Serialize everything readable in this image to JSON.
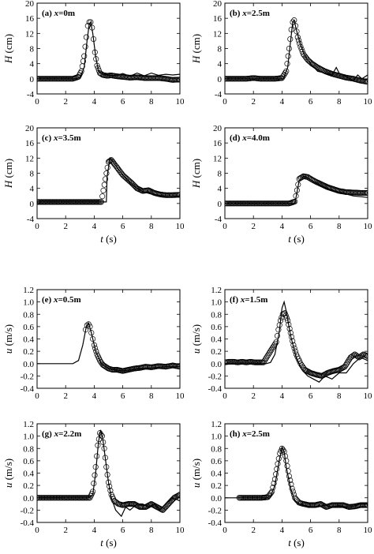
{
  "chart_data": [
    {
      "id": "a",
      "type": "line",
      "label_prefix": "(a) ",
      "label_var": "x",
      "label_value": "=0m",
      "xlim": [
        0,
        10
      ],
      "ylim": [
        -4,
        20
      ],
      "xticks": [
        0,
        2,
        4,
        6,
        8,
        10
      ],
      "yticks": [
        -4,
        0,
        4,
        8,
        12,
        16,
        20
      ],
      "ylabel_var": "H",
      "ylabel_unit": " (cm)",
      "xlabel_var": "",
      "xlabel_unit": "",
      "series": [
        {
          "style": "line",
          "x": [
            0,
            2.6,
            3.0,
            3.3,
            3.5,
            3.65,
            3.75,
            3.9,
            4.1,
            4.3,
            4.6,
            5.0,
            5.5,
            6.0,
            6.5,
            7.0,
            7.5,
            8.0,
            8.5,
            9.0,
            9.5,
            10
          ],
          "y": [
            0,
            0,
            0.3,
            3,
            10,
            14.5,
            15,
            12,
            6,
            2,
            1.2,
            1.0,
            0.8,
            1.4,
            0.7,
            1.5,
            0.8,
            1.5,
            0.9,
            1.2,
            1.0,
            1.2
          ]
        },
        {
          "style": "markers",
          "x": [
            0,
            0.5,
            1,
            1.5,
            2,
            2.5,
            2.9,
            3.1,
            3.3,
            3.45,
            3.55,
            3.65,
            3.75,
            3.85,
            3.95,
            4.05,
            4.2,
            4.4,
            4.6,
            4.9,
            5.2,
            5.5,
            6,
            6.5,
            7,
            7.5,
            8,
            8.5,
            9,
            9.5,
            10
          ],
          "y": [
            0,
            0,
            0,
            0,
            0,
            0,
            0.5,
            2,
            6,
            11,
            14,
            15,
            15,
            13.5,
            10.5,
            7,
            3.5,
            1.5,
            1.0,
            0.8,
            0.9,
            0.7,
            0.5,
            0.3,
            0.4,
            0.2,
            0.2,
            0.2,
            0,
            -0.3,
            -0.2
          ]
        }
      ]
    },
    {
      "id": "b",
      "type": "line",
      "label_prefix": "(b) ",
      "label_var": "x",
      "label_value": "=2.5m",
      "xlim": [
        0,
        10
      ],
      "ylim": [
        -4,
        20
      ],
      "xticks": [
        0,
        2,
        4,
        6,
        8,
        10
      ],
      "yticks": [
        -4,
        0,
        4,
        8,
        12,
        16,
        20
      ],
      "ylabel_var": "H",
      "ylabel_unit": " (cm)",
      "xlabel_var": "",
      "xlabel_unit": "",
      "series": [
        {
          "style": "line",
          "x": [
            0,
            4.1,
            4.4,
            4.6,
            4.75,
            4.85,
            5.0,
            5.3,
            5.6,
            6.0,
            6.5,
            7.0,
            7.5,
            7.8,
            8.0,
            8.5,
            9.0,
            9.3,
            9.6,
            10
          ],
          "y": [
            0,
            0,
            3,
            10,
            15,
            15.5,
            13,
            9,
            6,
            4,
            2,
            1.5,
            1,
            3,
            1.5,
            0.5,
            -0.5,
            1,
            0,
            1
          ]
        },
        {
          "style": "markers",
          "x": [
            0,
            0.5,
            1,
            1.5,
            2,
            2.5,
            3,
            3.5,
            4.0,
            4.3,
            4.5,
            4.65,
            4.75,
            4.85,
            4.95,
            5.1,
            5.3,
            5.5,
            5.8,
            6.1,
            6.5,
            7.0,
            7.5,
            8.0,
            8.5,
            9.0,
            9.5,
            10
          ],
          "y": [
            0,
            0,
            0,
            0,
            0.2,
            0,
            0,
            0,
            0.2,
            2,
            8,
            13,
            15,
            15.5,
            14,
            11,
            8.5,
            6.5,
            5,
            4,
            3,
            2,
            1.3,
            0.8,
            0.3,
            0,
            -0.5,
            -0.8
          ]
        }
      ]
    },
    {
      "id": "c",
      "type": "line",
      "label_prefix": "(c) ",
      "label_var": "x",
      "label_value": "=3.5m",
      "xlim": [
        0,
        10
      ],
      "ylim": [
        -4,
        20
      ],
      "xticks": [
        0,
        2,
        4,
        6,
        8,
        10
      ],
      "yticks": [
        -4,
        0,
        4,
        8,
        12,
        16,
        20
      ],
      "ylabel_var": "H",
      "ylabel_unit": " (cm)",
      "xlabel_var": "t",
      "xlabel_unit": " (s)",
      "series": [
        {
          "style": "line",
          "x": [
            0,
            4.85,
            4.9,
            5.1,
            5.3,
            5.6,
            6.0,
            6.5,
            7.0,
            7.5,
            8.0,
            8.5,
            9.0,
            9.5,
            10
          ],
          "y": [
            0.4,
            0.4,
            7,
            12,
            11.2,
            9.5,
            7.5,
            5.5,
            4,
            3,
            2.5,
            2.2,
            2,
            2,
            2
          ]
        },
        {
          "style": "markers",
          "x": [
            0,
            0.5,
            1,
            1.5,
            2,
            2.5,
            3,
            3.5,
            4,
            4.5,
            5.0,
            5.2,
            5.4,
            5.6,
            5.8,
            6.0,
            6.3,
            6.6,
            7.0,
            7.4,
            7.8,
            8.2,
            8.6,
            9.0,
            9.5,
            10
          ],
          "y": [
            0.4,
            0.4,
            0.4,
            0.4,
            0.4,
            0.4,
            0.4,
            0.4,
            0.4,
            0.4,
            11,
            11.5,
            10.5,
            9.5,
            8.5,
            7.5,
            6.5,
            5.5,
            4,
            3.3,
            3.5,
            2.8,
            2.4,
            2.2,
            2.2,
            2.3
          ]
        }
      ]
    },
    {
      "id": "d",
      "type": "line",
      "label_prefix": "(d) ",
      "label_var": "x",
      "label_value": "=4.0m",
      "xlim": [
        0,
        10
      ],
      "ylim": [
        -4,
        20
      ],
      "xticks": [
        0,
        2,
        4,
        6,
        8,
        10
      ],
      "yticks": [
        -4,
        0,
        4,
        8,
        12,
        16,
        20
      ],
      "ylabel_var": "H",
      "ylabel_unit": " (cm)",
      "xlabel_var": "t",
      "xlabel_unit": " (s)",
      "series": [
        {
          "style": "line",
          "x": [
            0,
            4.9,
            5.0,
            5.2,
            5.5,
            5.8,
            6.2,
            6.8,
            7.5,
            8.0,
            8.5,
            9.0,
            9.5,
            10
          ],
          "y": [
            0,
            0,
            2,
            6,
            7.2,
            6.8,
            5.8,
            4.5,
            3.5,
            3,
            2.5,
            2,
            1.8,
            1.6
          ]
        },
        {
          "style": "markers",
          "x": [
            0,
            0.5,
            1,
            1.5,
            2,
            2.5,
            3,
            3.5,
            4,
            4.5,
            4.9,
            5.2,
            5.5,
            5.8,
            6.1,
            6.4,
            6.8,
            7.2,
            7.6,
            8.0,
            8.5,
            9.0,
            9.5,
            10
          ],
          "y": [
            0,
            0,
            0,
            0,
            0,
            0,
            0,
            0,
            0,
            0,
            0.5,
            6.5,
            7.2,
            7,
            6.3,
            5.7,
            5,
            4.3,
            3.8,
            3.3,
            3,
            2.9,
            2.8,
            2.8
          ]
        }
      ]
    },
    {
      "id": "e",
      "type": "line",
      "label_prefix": "(e) ",
      "label_var": "x",
      "label_value": "=0.5m",
      "xlim": [
        0,
        10
      ],
      "ylim": [
        -0.4,
        1.2
      ],
      "xticks": [
        0,
        2,
        4,
        6,
        8,
        10
      ],
      "yticks": [
        -0.4,
        -0.2,
        0.0,
        0.2,
        0.4,
        0.6,
        0.8,
        1.0,
        1.2
      ],
      "ylabel_var": "u",
      "ylabel_unit": " (m/s)",
      "xlabel_var": "",
      "xlabel_unit": "",
      "series": [
        {
          "style": "line",
          "x": [
            0,
            2.5,
            2.9,
            3.2,
            3.45,
            3.6,
            3.8,
            4.1,
            4.5,
            5.0,
            5.5,
            6.0,
            6.5,
            7.0,
            8.0,
            9.0,
            10
          ],
          "y": [
            0,
            0,
            0.05,
            0.3,
            0.6,
            0.66,
            0.5,
            0.2,
            0,
            -0.08,
            -0.1,
            -0.12,
            -0.1,
            -0.08,
            -0.07,
            -0.05,
            -0.05
          ]
        },
        {
          "style": "markers",
          "x": [
            3.4,
            3.5,
            3.6,
            3.7,
            3.8,
            3.9,
            4.0,
            4.2,
            4.4,
            4.6,
            4.8,
            5.0,
            5.3,
            5.6,
            6.0,
            6.4,
            6.8,
            7.2,
            7.6,
            8.0,
            8.5,
            9.0,
            9.5,
            10
          ],
          "y": [
            0.55,
            0.62,
            0.64,
            0.6,
            0.5,
            0.4,
            0.3,
            0.15,
            0.05,
            -0.02,
            -0.05,
            -0.08,
            -0.1,
            -0.1,
            -0.12,
            -0.1,
            -0.08,
            -0.07,
            -0.05,
            -0.06,
            -0.04,
            -0.05,
            -0.03,
            -0.05
          ]
        }
      ]
    },
    {
      "id": "f",
      "type": "line",
      "label_prefix": "(f) ",
      "label_var": "x",
      "label_value": "=1.5m",
      "xlim": [
        0,
        10
      ],
      "ylim": [
        -0.4,
        1.2
      ],
      "xticks": [
        0,
        2,
        4,
        6,
        8,
        10
      ],
      "yticks": [
        -0.4,
        -0.2,
        0.0,
        0.2,
        0.4,
        0.6,
        0.8,
        1.0,
        1.2
      ],
      "ylabel_var": "u",
      "ylabel_unit": " (m/s)",
      "xlabel_var": "",
      "xlabel_unit": "",
      "series": [
        {
          "style": "line",
          "x": [
            0,
            2.9,
            3.2,
            3.5,
            3.8,
            4.0,
            4.15,
            4.3,
            4.6,
            5.0,
            5.4,
            5.8,
            6.2,
            6.6,
            7.0,
            7.5,
            8.0,
            8.5,
            9.0,
            9.5,
            10
          ],
          "y": [
            0,
            0,
            0.02,
            0.15,
            0.5,
            0.9,
            1.0,
            0.85,
            0.45,
            0.1,
            -0.1,
            -0.2,
            -0.25,
            -0.3,
            -0.2,
            -0.25,
            -0.15,
            -0.15,
            0.0,
            0.1,
            0.05
          ]
        },
        {
          "style": "markers",
          "x": [
            0,
            0.3,
            0.6,
            0.9,
            1.2,
            1.5,
            1.8,
            2.1,
            2.4,
            2.7,
            3.6,
            3.75,
            3.9,
            4.05,
            4.2,
            4.4,
            4.6,
            4.8,
            5.0,
            5.3,
            5.6,
            6.0,
            6.4,
            6.8,
            7.2,
            7.6,
            8.0,
            8.4,
            8.8,
            9.1,
            9.4,
            9.7,
            10
          ],
          "y": [
            0.02,
            0.03,
            0.03,
            0.02,
            0.03,
            0.02,
            0.03,
            0.02,
            0.02,
            0.02,
            0.35,
            0.55,
            0.7,
            0.8,
            0.82,
            0.7,
            0.5,
            0.3,
            0.15,
            0.0,
            -0.1,
            -0.15,
            -0.18,
            -0.2,
            -0.15,
            -0.12,
            -0.1,
            -0.05,
            0.1,
            0.15,
            0.1,
            0.15,
            0.12
          ]
        }
      ]
    },
    {
      "id": "g",
      "type": "line",
      "label_prefix": "(g) ",
      "label_var": "x",
      "label_value": "=2.2m",
      "xlim": [
        0,
        10
      ],
      "ylim": [
        -0.4,
        1.2
      ],
      "xticks": [
        0,
        2,
        4,
        6,
        8,
        10
      ],
      "yticks": [
        -0.4,
        -0.2,
        0.0,
        0.2,
        0.4,
        0.6,
        0.8,
        1.0,
        1.2
      ],
      "ylabel_var": "u",
      "ylabel_unit": " (m/s)",
      "xlabel_var": "t",
      "xlabel_unit": " (s)",
      "series": [
        {
          "style": "line",
          "x": [
            0,
            3.6,
            3.9,
            4.1,
            4.3,
            4.45,
            4.6,
            4.8,
            5.0,
            5.2,
            5.5,
            5.9,
            6.2,
            6.5,
            7.0,
            7.4,
            7.8,
            8.2,
            8.6,
            9.0,
            9.5,
            10
          ],
          "y": [
            0,
            0,
            0.05,
            0.4,
            0.9,
            1.1,
            0.95,
            0.6,
            0.25,
            0.0,
            -0.2,
            -0.3,
            -0.15,
            -0.2,
            -0.1,
            -0.1,
            -0.15,
            -0.1,
            -0.2,
            -0.1,
            0.0,
            -0.05
          ]
        },
        {
          "style": "markers",
          "x": [
            0,
            0.3,
            0.6,
            0.9,
            1.2,
            1.5,
            1.8,
            3.7,
            3.9,
            4.1,
            4.25,
            4.4,
            4.55,
            4.7,
            4.85,
            5.0,
            5.2,
            5.4,
            5.7,
            6.0,
            6.4,
            6.8,
            7.2,
            7.6,
            8.0,
            8.4,
            8.8,
            9.2,
            9.6,
            10
          ],
          "y": [
            0,
            0,
            0,
            0,
            0,
            0,
            0,
            0,
            0.1,
            0.5,
            0.85,
            1.05,
            1.0,
            0.8,
            0.5,
            0.25,
            0.05,
            -0.05,
            -0.1,
            -0.12,
            -0.1,
            -0.1,
            -0.15,
            -0.15,
            -0.1,
            -0.15,
            -0.2,
            -0.1,
            0.0,
            0.05
          ]
        }
      ]
    },
    {
      "id": "h",
      "type": "line",
      "label_prefix": "(h) ",
      "label_var": "x",
      "label_value": "=2.5m",
      "xlim": [
        0,
        10
      ],
      "ylim": [
        -0.4,
        1.2
      ],
      "xticks": [
        0,
        2,
        4,
        6,
        8,
        10
      ],
      "yticks": [
        -0.4,
        -0.2,
        0.0,
        0.2,
        0.4,
        0.6,
        0.8,
        1.0,
        1.2
      ],
      "ylabel_var": "u",
      "ylabel_unit": " (m/s)",
      "xlabel_var": "t",
      "xlabel_unit": " (s)",
      "series": [
        {
          "style": "line",
          "x": [
            0,
            2.9,
            3.2,
            3.5,
            3.8,
            4.0,
            4.15,
            4.3,
            4.6,
            4.9,
            5.2,
            5.5,
            6.0,
            6.5,
            7.0,
            7.5,
            8.0,
            8.5,
            9.0,
            9.5,
            10
          ],
          "y": [
            0,
            0,
            0.02,
            0.2,
            0.6,
            0.82,
            0.75,
            0.5,
            0.15,
            -0.05,
            -0.1,
            -0.12,
            -0.15,
            -0.15,
            -0.12,
            -0.15,
            -0.13,
            -0.15,
            -0.14,
            -0.1,
            -0.1
          ]
        },
        {
          "style": "markers",
          "x": [
            1.0,
            1.4,
            1.8,
            2.2,
            2.6,
            3.0,
            3.3,
            3.5,
            3.7,
            3.85,
            4.0,
            4.15,
            4.3,
            4.5,
            4.7,
            4.9,
            5.2,
            5.5,
            5.9,
            6.3,
            6.7,
            7.1,
            7.5,
            7.9,
            8.3,
            8.7,
            9.1,
            9.5,
            10
          ],
          "y": [
            0,
            0,
            0,
            0,
            0,
            0.01,
            0.1,
            0.3,
            0.55,
            0.72,
            0.8,
            0.75,
            0.6,
            0.35,
            0.15,
            0.0,
            -0.08,
            -0.1,
            -0.12,
            -0.12,
            -0.1,
            -0.15,
            -0.12,
            -0.12,
            -0.12,
            -0.15,
            -0.14,
            -0.12,
            -0.12
          ]
        }
      ]
    }
  ]
}
